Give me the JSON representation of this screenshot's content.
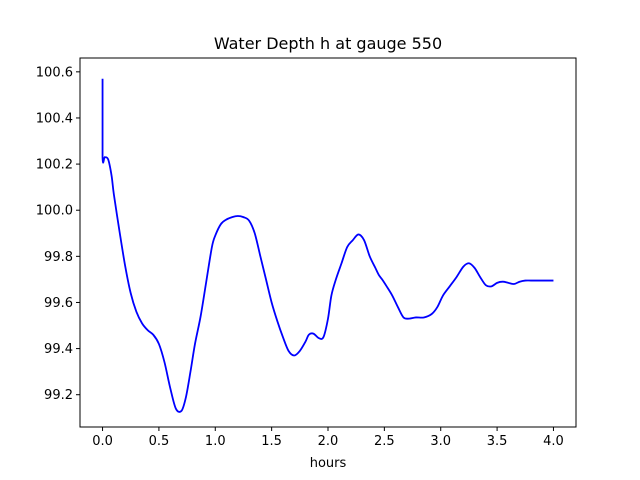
{
  "chart_data": {
    "type": "line",
    "title": "Water Depth h at gauge 550",
    "xlabel": "hours",
    "ylabel": "",
    "xlim": [
      -0.2,
      4.2
    ],
    "ylim": [
      99.06,
      100.66
    ],
    "xticks": [
      0.0,
      0.5,
      1.0,
      1.5,
      2.0,
      2.5,
      3.0,
      3.5,
      4.0
    ],
    "xtick_labels": [
      "0.0",
      "0.5",
      "1.0",
      "1.5",
      "2.0",
      "2.5",
      "3.0",
      "3.5",
      "4.0"
    ],
    "yticks": [
      99.2,
      99.4,
      99.6,
      99.8,
      100.0,
      100.2,
      100.4,
      100.6
    ],
    "ytick_labels": [
      "99.2",
      "99.4",
      "99.6",
      "99.8",
      "100.0",
      "100.2",
      "100.4",
      "100.6"
    ],
    "grid": false,
    "legend": false,
    "series": [
      {
        "color": "#0000ff",
        "x": [
          0.0,
          0.0,
          0.02,
          0.05,
          0.08,
          0.1,
          0.15,
          0.2,
          0.25,
          0.3,
          0.35,
          0.4,
          0.45,
          0.5,
          0.55,
          0.6,
          0.65,
          0.7,
          0.74,
          0.78,
          0.82,
          0.87,
          0.92,
          0.97,
          1.0,
          1.05,
          1.1,
          1.15,
          1.2,
          1.25,
          1.3,
          1.35,
          1.4,
          1.45,
          1.5,
          1.55,
          1.6,
          1.65,
          1.7,
          1.75,
          1.8,
          1.83,
          1.87,
          1.92,
          1.96,
          2.0,
          2.03,
          2.07,
          2.12,
          2.17,
          2.22,
          2.27,
          2.32,
          2.37,
          2.42,
          2.45,
          2.48,
          2.52,
          2.57,
          2.62,
          2.67,
          2.72,
          2.78,
          2.85,
          2.92,
          2.97,
          3.02,
          3.08,
          3.14,
          3.2,
          3.25,
          3.3,
          3.35,
          3.4,
          3.45,
          3.5,
          3.55,
          3.6,
          3.65,
          3.7,
          3.75,
          3.8,
          3.85,
          3.9,
          3.95,
          4.0
        ],
        "y": [
          100.57,
          100.23,
          100.23,
          100.22,
          100.15,
          100.07,
          99.91,
          99.76,
          99.64,
          99.56,
          99.51,
          99.48,
          99.46,
          99.42,
          99.34,
          99.23,
          99.14,
          99.13,
          99.19,
          99.3,
          99.42,
          99.54,
          99.69,
          99.84,
          99.89,
          99.94,
          99.96,
          99.97,
          99.975,
          99.97,
          99.955,
          99.9,
          99.8,
          99.7,
          99.6,
          99.52,
          99.45,
          99.39,
          99.37,
          99.39,
          99.43,
          99.46,
          99.465,
          99.445,
          99.45,
          99.53,
          99.63,
          99.7,
          99.77,
          99.84,
          99.87,
          99.895,
          99.87,
          99.8,
          99.75,
          99.72,
          99.7,
          99.67,
          99.63,
          99.58,
          99.535,
          99.53,
          99.535,
          99.535,
          99.55,
          99.58,
          99.63,
          99.67,
          99.71,
          99.755,
          99.77,
          99.75,
          99.71,
          99.675,
          99.67,
          99.685,
          99.69,
          99.685,
          99.68,
          99.69,
          99.695,
          99.695,
          99.695,
          99.695,
          99.695,
          99.695
        ]
      }
    ]
  }
}
